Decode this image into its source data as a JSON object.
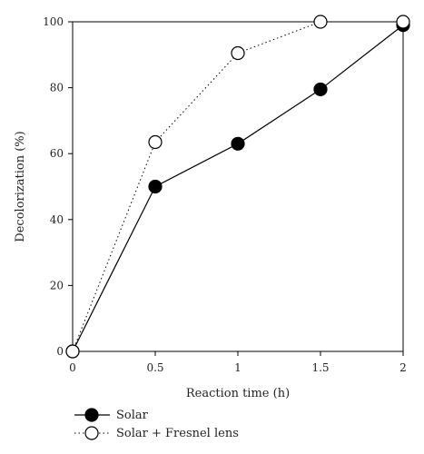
{
  "chart_data": {
    "type": "line",
    "xlabel": "Reaction time (h)",
    "ylabel": "Decolorization (%)",
    "xlim": [
      0,
      2
    ],
    "ylim": [
      0,
      100
    ],
    "xticks": [
      "0",
      "0.5",
      "1",
      "1.5",
      "2"
    ],
    "yticks": [
      "0",
      "20",
      "40",
      "60",
      "80",
      "100"
    ],
    "grid": false,
    "legend_position": "bottom-left, below axes",
    "series": [
      {
        "name": "Solar",
        "x": [
          0,
          0.5,
          1,
          1.5,
          2
        ],
        "y": [
          0,
          50,
          63,
          79.5,
          99
        ],
        "line_style": "solid",
        "marker": "filled-circle",
        "color": "#000000"
      },
      {
        "name": "Solar + Fresnel lens",
        "x": [
          0,
          0.5,
          1,
          1.5,
          2
        ],
        "y": [
          0,
          63.5,
          90.5,
          100,
          100
        ],
        "line_style": "dotted",
        "marker": "open-circle",
        "color": "#000000"
      }
    ]
  }
}
